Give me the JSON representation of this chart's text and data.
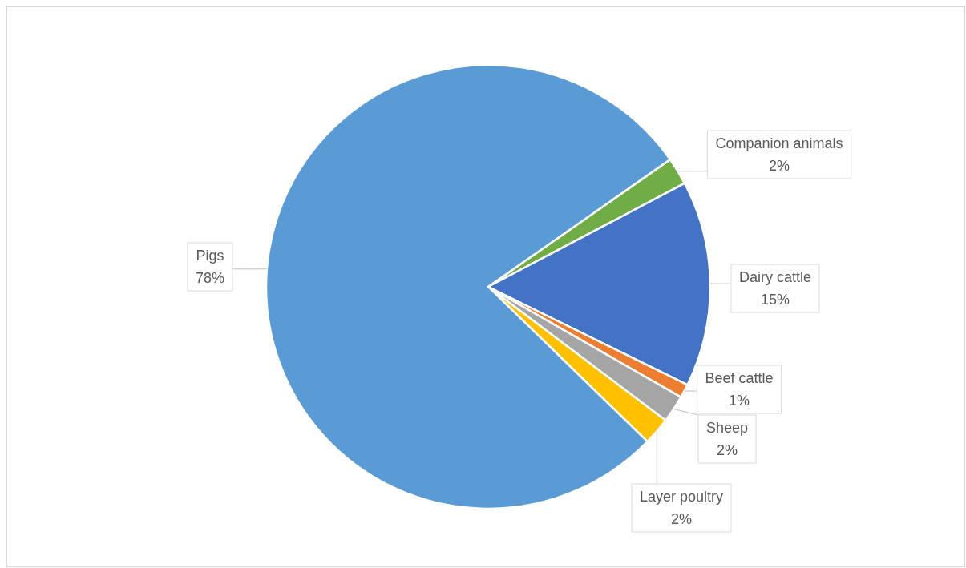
{
  "chart_data": {
    "type": "pie",
    "categories": [
      "Companion animals",
      "Dairy cattle",
      "Beef cattle",
      "Sheep",
      "Layer poultry",
      "Pigs"
    ],
    "values": [
      2,
      15,
      1,
      2,
      2,
      78
    ],
    "value_labels": [
      "2%",
      "15%",
      "1%",
      "2%",
      "2%",
      "78%"
    ],
    "colors": [
      "#70ad47",
      "#4472c4",
      "#ed7d31",
      "#a5a5a5",
      "#ffc000",
      "#5b9bd5"
    ],
    "legend": false
  }
}
